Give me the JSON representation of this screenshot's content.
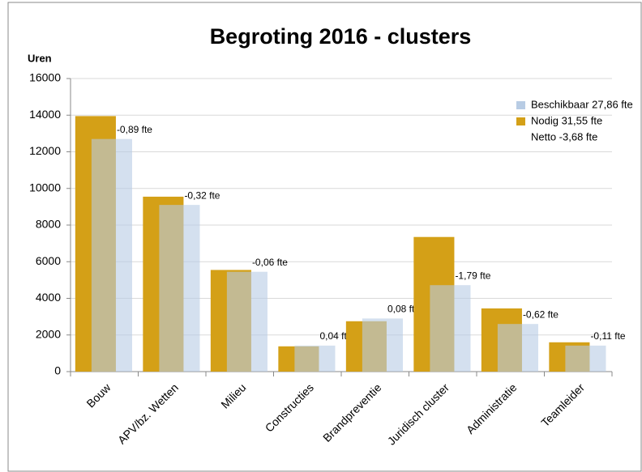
{
  "chart_data": {
    "type": "bar",
    "title": "Begroting 2016 - clusters",
    "y_label": "Uren",
    "categories": [
      "Bouw",
      "APV/bz. Wetten",
      "Milieu",
      "Constructies",
      "Brandpreventie",
      "Juridisch cluster",
      "Administratie",
      "Teamleider"
    ],
    "series": [
      {
        "name": "Nodig 31,55 fte",
        "color": "#d4a017",
        "values": [
          13950,
          9550,
          5550,
          1380,
          2750,
          7350,
          3450,
          1600
        ]
      },
      {
        "name": "Beschikbaar 27,86 fte",
        "color": "#b8cce4",
        "values": [
          12700,
          9100,
          5450,
          1420,
          2900,
          4720,
          2600,
          1420
        ]
      }
    ],
    "difference_labels": [
      "-0,89 fte",
      "-0,32 fte",
      "-0,06 fte",
      "0,04 fte",
      "0,08 fte",
      "-1,79 fte",
      "-0,62 fte",
      "-0,11 fte"
    ],
    "legend_note": "Netto -3,68 fte",
    "ylim": [
      0,
      16000
    ],
    "yticks": [
      0,
      2000,
      4000,
      6000,
      8000,
      10000,
      12000,
      14000,
      16000
    ],
    "grid": true,
    "legend_position": "right"
  }
}
